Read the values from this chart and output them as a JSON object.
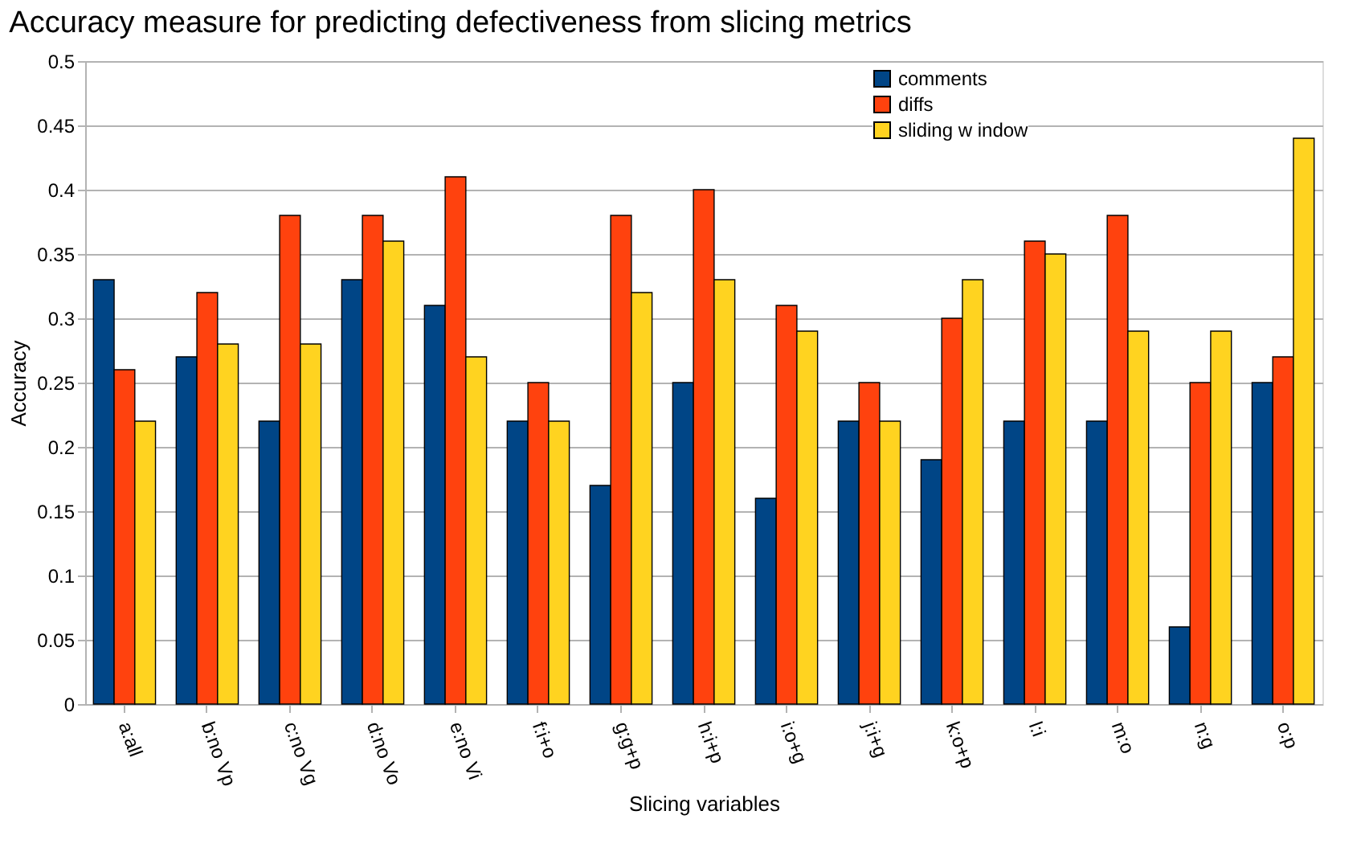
{
  "chart_data": {
    "type": "bar",
    "title": "Accuracy measure for predicting defectiveness from slicing metrics",
    "xlabel": "Slicing variables",
    "ylabel": "Accuracy",
    "categories": [
      "a:all",
      "b:no Vp",
      "c:no Vg",
      "d:no Vo",
      "e:no Vi",
      "f:i+o",
      "g:g+p",
      "h:i+p",
      "i:o+g",
      "j:i+g",
      "k:o+p",
      "l:i",
      "m:o",
      "n:g",
      "o:p"
    ],
    "series": [
      {
        "name": "comments",
        "color": "#004586",
        "values": [
          0.33,
          0.27,
          0.22,
          0.33,
          0.31,
          0.22,
          0.17,
          0.25,
          0.16,
          0.22,
          0.19,
          0.22,
          0.22,
          0.06,
          0.25
        ]
      },
      {
        "name": "diffs",
        "color": "#ff420e",
        "values": [
          0.26,
          0.32,
          0.38,
          0.38,
          0.41,
          0.25,
          0.38,
          0.4,
          0.31,
          0.25,
          0.3,
          0.36,
          0.38,
          0.25,
          0.27
        ]
      },
      {
        "name": "sliding w indow",
        "color": "#ffd320",
        "values": [
          0.22,
          0.28,
          0.28,
          0.36,
          0.27,
          0.22,
          0.32,
          0.33,
          0.29,
          0.22,
          0.33,
          0.35,
          0.29,
          0.29,
          0.44
        ]
      }
    ],
    "ylim": [
      0,
      0.5
    ],
    "yticks": [
      0,
      0.05,
      0.1,
      0.15,
      0.2,
      0.25,
      0.3,
      0.35,
      0.4,
      0.45,
      0.5
    ],
    "grid": "y",
    "legend": "top right"
  }
}
